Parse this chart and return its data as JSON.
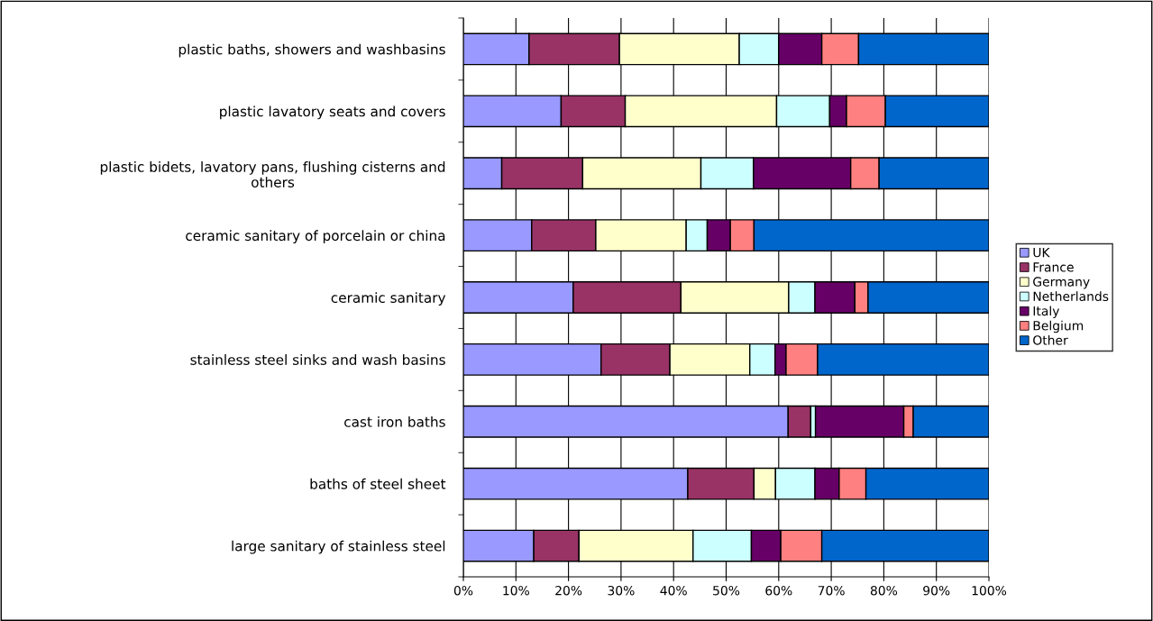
{
  "chart_data": {
    "type": "bar",
    "orientation": "horizontal",
    "stacked": true,
    "categories": [
      "plastic baths, showers and washbasins",
      "plastic lavatory seats and covers",
      "plastic bidets, lavatory pans, flushing cisterns and\nothers",
      "ceramic sanitary of porcelain or china",
      "ceramic sanitary",
      "stainless steel sinks and wash basins",
      "cast iron baths",
      "baths of steel sheet",
      "large sanitary of stainless steel"
    ],
    "series": [
      {
        "name": "UK",
        "color": "#9999ff",
        "values": [
          12.5,
          18.6,
          7.3,
          13.0,
          20.9,
          26.2,
          61.8,
          42.7,
          13.4
        ]
      },
      {
        "name": "France",
        "color": "#993366",
        "values": [
          17.2,
          12.2,
          15.4,
          12.2,
          20.5,
          13.1,
          4.3,
          12.6,
          8.6
        ]
      },
      {
        "name": "Germany",
        "color": "#ffffcc",
        "values": [
          22.8,
          28.8,
          22.5,
          17.2,
          20.5,
          15.2,
          null,
          4.1,
          21.7
        ]
      },
      {
        "name": "Netherlands",
        "color": "#ccffff",
        "values": [
          7.5,
          10.1,
          10.0,
          4.0,
          5.0,
          4.8,
          0.9,
          7.5,
          11.1
        ]
      },
      {
        "name": "Italy",
        "color": "#660066",
        "values": [
          8.2,
          3.2,
          18.5,
          4.4,
          7.6,
          2.1,
          16.8,
          4.6,
          5.6
        ]
      },
      {
        "name": "Belgium",
        "color": "#ff8080",
        "values": [
          7.0,
          7.4,
          5.4,
          4.5,
          2.5,
          6.0,
          1.8,
          5.1,
          7.8
        ]
      },
      {
        "name": "Other",
        "color": "#0066cc",
        "values": [
          24.8,
          19.7,
          20.9,
          44.7,
          23.0,
          32.6,
          14.4,
          23.4,
          31.8
        ]
      }
    ],
    "xlim": [
      0,
      100
    ],
    "xticks": [
      {
        "value": 0,
        "label": "0%"
      },
      {
        "value": 10,
        "label": "10%"
      },
      {
        "value": 20,
        "label": "20%"
      },
      {
        "value": 30,
        "label": "30%"
      },
      {
        "value": 40,
        "label": "40%"
      },
      {
        "value": 50,
        "label": "50%"
      },
      {
        "value": 60,
        "label": "60%"
      },
      {
        "value": 70,
        "label": "70%"
      },
      {
        "value": 80,
        "label": "80%"
      },
      {
        "value": 90,
        "label": "90%"
      },
      {
        "value": 100,
        "label": "100%"
      }
    ],
    "grid": "x",
    "legend": "right"
  }
}
